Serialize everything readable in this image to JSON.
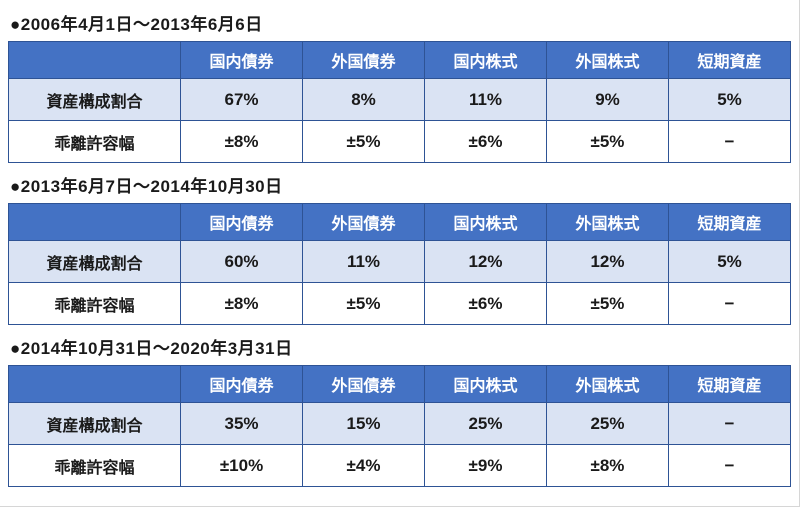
{
  "colors": {
    "header_bg": "#4472c4",
    "header_text": "#ffffff",
    "row_shaded_bg": "#dae3f3",
    "row_plain_bg": "#ffffff",
    "table_border": "#2e5395",
    "text": "#1a1a1a"
  },
  "column_headers": [
    "国内債券",
    "外国債券",
    "国内株式",
    "外国株式",
    "短期資産"
  ],
  "sections": [
    {
      "heading": "●2006年4月1日～2013年6月6日",
      "rows": [
        {
          "label": "資産構成割合",
          "values": [
            "67%",
            "8%",
            "11%",
            "9%",
            "5%"
          ]
        },
        {
          "label": "乖離許容幅",
          "values": [
            "±8%",
            "±5%",
            "±6%",
            "±5%",
            "−"
          ]
        }
      ]
    },
    {
      "heading": "●2013年6月7日～2014年10月30日",
      "rows": [
        {
          "label": "資産構成割合",
          "values": [
            "60%",
            "11%",
            "12%",
            "12%",
            "5%"
          ]
        },
        {
          "label": "乖離許容幅",
          "values": [
            "±8%",
            "±5%",
            "±6%",
            "±5%",
            "−"
          ]
        }
      ]
    },
    {
      "heading": "●2014年10月31日～2020年3月31日",
      "rows": [
        {
          "label": "資産構成割合",
          "values": [
            "35%",
            "15%",
            "25%",
            "25%",
            "−"
          ]
        },
        {
          "label": "乖離許容幅",
          "values": [
            "±10%",
            "±4%",
            "±9%",
            "±8%",
            "−"
          ]
        }
      ]
    }
  ]
}
